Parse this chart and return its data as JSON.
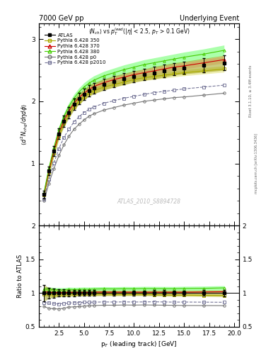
{
  "title_left": "7000 GeV pp",
  "title_right": "Underlying Event",
  "ylabel_main": "$\\langle d^2 N_{chg}/d\\eta d\\phi \\rangle$",
  "ylabel_ratio": "Ratio to ATLAS",
  "xlabel": "p$_T$ (leading track) [GeV]",
  "watermark": "ATLAS_2010_S8894728",
  "right_label": "Rivet 3.1.10, ≥ 3.4M events",
  "right_label2": "mcplots.cern.ch [arXiv:1306.3436]",
  "ylim_main": [
    0.0,
    3.25
  ],
  "ylim_ratio": [
    0.5,
    2.0
  ],
  "xlim": [
    0.5,
    20.5
  ],
  "pt_atlas": [
    1.0,
    1.5,
    2.0,
    2.5,
    3.0,
    3.5,
    4.0,
    4.5,
    5.0,
    5.5,
    6.0,
    7.0,
    8.0,
    9.0,
    10.0,
    11.0,
    12.0,
    13.0,
    14.0,
    15.0,
    17.0,
    19.0
  ],
  "atlas_vals": [
    0.5,
    0.88,
    1.2,
    1.48,
    1.68,
    1.82,
    1.95,
    2.04,
    2.11,
    2.17,
    2.21,
    2.27,
    2.32,
    2.36,
    2.4,
    2.43,
    2.46,
    2.49,
    2.52,
    2.54,
    2.58,
    2.62
  ],
  "atlas_err": [
    0.06,
    0.07,
    0.08,
    0.08,
    0.09,
    0.09,
    0.09,
    0.09,
    0.09,
    0.09,
    0.09,
    0.09,
    0.09,
    0.09,
    0.09,
    0.09,
    0.1,
    0.1,
    0.1,
    0.1,
    0.11,
    0.12
  ],
  "pt_mc": [
    1.0,
    1.5,
    2.0,
    2.5,
    3.0,
    3.5,
    4.0,
    4.5,
    5.0,
    5.5,
    6.0,
    7.0,
    8.0,
    9.0,
    10.0,
    11.0,
    12.0,
    13.0,
    14.0,
    15.0,
    17.0,
    19.0
  ],
  "py350_vals": [
    0.49,
    0.86,
    1.17,
    1.44,
    1.64,
    1.79,
    1.91,
    2.0,
    2.07,
    2.13,
    2.17,
    2.23,
    2.27,
    2.31,
    2.35,
    2.38,
    2.4,
    2.42,
    2.44,
    2.46,
    2.49,
    2.52
  ],
  "py370_vals": [
    0.51,
    0.89,
    1.21,
    1.49,
    1.69,
    1.84,
    1.97,
    2.06,
    2.13,
    2.19,
    2.24,
    2.3,
    2.35,
    2.39,
    2.43,
    2.46,
    2.49,
    2.52,
    2.55,
    2.57,
    2.62,
    2.67
  ],
  "py380_vals": [
    0.53,
    0.93,
    1.26,
    1.55,
    1.76,
    1.92,
    2.05,
    2.15,
    2.23,
    2.29,
    2.34,
    2.41,
    2.46,
    2.51,
    2.55,
    2.59,
    2.62,
    2.65,
    2.68,
    2.71,
    2.76,
    2.82
  ],
  "pyp0_vals": [
    0.4,
    0.68,
    0.92,
    1.13,
    1.3,
    1.44,
    1.55,
    1.63,
    1.7,
    1.76,
    1.8,
    1.86,
    1.9,
    1.94,
    1.97,
    2.0,
    2.02,
    2.04,
    2.06,
    2.07,
    2.1,
    2.13
  ],
  "pyp2010_vals": [
    0.43,
    0.75,
    1.01,
    1.24,
    1.42,
    1.55,
    1.67,
    1.75,
    1.82,
    1.87,
    1.91,
    1.97,
    2.01,
    2.05,
    2.08,
    2.11,
    2.14,
    2.16,
    2.18,
    2.2,
    2.23,
    2.26
  ],
  "color_atlas": "#000000",
  "color_350": "#aaaa00",
  "color_370": "#cc0000",
  "color_380": "#44cc00",
  "color_p0": "#777777",
  "color_p2010": "#777799",
  "yticks_main": [
    1,
    2,
    3
  ],
  "yticks_ratio": [
    0.5,
    1.0,
    1.5,
    2.0
  ]
}
